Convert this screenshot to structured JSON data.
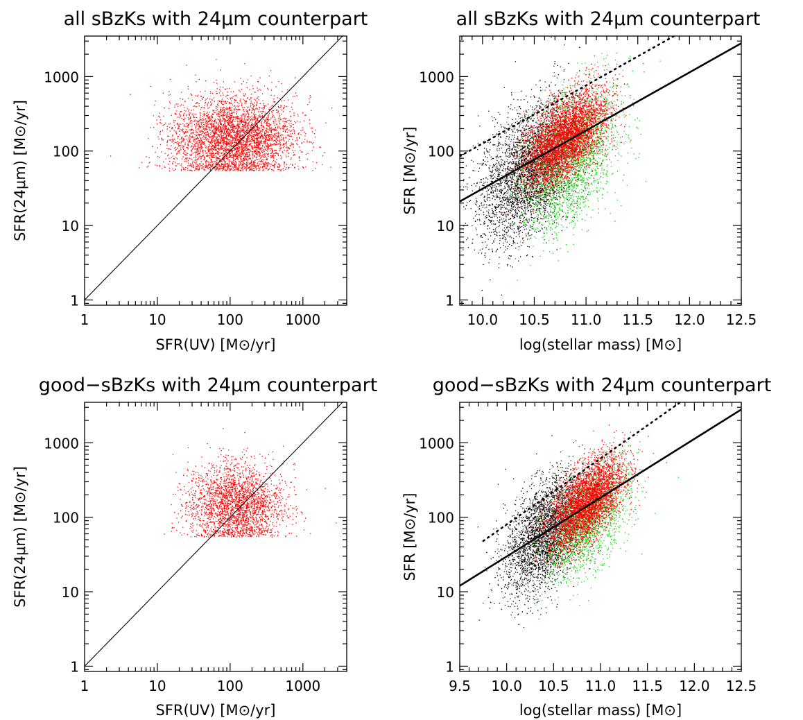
{
  "colors": {
    "red": "#ff0000",
    "green": "#00e000",
    "black": "#000000"
  },
  "chart_data": [
    {
      "type": "scatter",
      "title": "all sBzKs with 24μm counterpart",
      "xlabel": "SFR(UV) [M⊙/yr]",
      "ylabel": "SFR(24μm) [M⊙/yr]",
      "xscale": "log",
      "yscale": "log",
      "xlim": [
        1,
        4000
      ],
      "ylim": [
        0.85,
        3500
      ],
      "xticks": [
        "1",
        "10",
        "100",
        "1000"
      ],
      "yticks": [
        "1",
        "10",
        "100",
        "1000"
      ],
      "grid": false,
      "lines": [
        {
          "style": "solid",
          "x": [
            1,
            4000
          ],
          "y": [
            1,
            4000
          ]
        }
      ],
      "clouds": [
        {
          "name": "",
          "color": "red",
          "count": 4200,
          "center": [
            110,
            150
          ],
          "spread_log": [
            0.42,
            0.28
          ],
          "ymin": 55
        }
      ]
    },
    {
      "type": "scatter",
      "title": "all sBzKs with 24μm counterpart",
      "xlabel": "log(stellar mass) [M⊙]",
      "ylabel": "SFR [M⊙/yr]",
      "xscale": "linear",
      "yscale": "log",
      "xlim": [
        9.78,
        12.5
      ],
      "ylim": [
        0.85,
        3500
      ],
      "xticks": [
        "10.0",
        "10.5",
        "11.0",
        "11.5",
        "12.0",
        "12.5"
      ],
      "yticks": [
        "1",
        "10",
        "100",
        "1000"
      ],
      "grid": false,
      "lines": [
        {
          "style": "solid",
          "x": [
            9.78,
            12.5
          ],
          "y": [
            21,
            2800
          ]
        },
        {
          "style": "dotted",
          "x": [
            9.78,
            11.85
          ],
          "y": [
            85,
            3500
          ]
        }
      ],
      "clouds": [
        {
          "name": "",
          "color": "black",
          "count": 3500,
          "center": [
            10.45,
            55
          ],
          "spread": [
            0.4,
            0.42
          ]
        },
        {
          "name": "",
          "color": "green",
          "count": 2200,
          "center": [
            10.85,
            80
          ],
          "spread": [
            0.38,
            0.42
          ]
        },
        {
          "name": "",
          "color": "red",
          "count": 4500,
          "center": [
            10.8,
            150
          ],
          "spread": [
            0.33,
            0.26
          ]
        }
      ]
    },
    {
      "type": "scatter",
      "title": "good−sBzKs with 24μm counterpart",
      "xlabel": "SFR(UV) [M⊙/yr]",
      "ylabel": "SFR(24μm) [M⊙/yr]",
      "xscale": "log",
      "yscale": "log",
      "xlim": [
        1,
        4000
      ],
      "ylim": [
        0.85,
        3500
      ],
      "xticks": [
        "1",
        "10",
        "100",
        "1000"
      ],
      "yticks": [
        "1",
        "10",
        "100",
        "1000"
      ],
      "grid": false,
      "lines": [
        {
          "style": "solid",
          "x": [
            1,
            4000
          ],
          "y": [
            1,
            4000
          ]
        }
      ],
      "clouds": [
        {
          "name": "",
          "color": "red",
          "count": 3800,
          "center": [
            120,
            150
          ],
          "spread_log": [
            0.32,
            0.27
          ],
          "ymin": 55,
          "xmin": 10
        }
      ]
    },
    {
      "type": "scatter",
      "title": "good−sBzKs with 24μm counterpart",
      "xlabel": "log(stellar mass) [M⊙]",
      "ylabel": "SFR [M⊙/yr]",
      "xscale": "linear",
      "yscale": "log",
      "xlim": [
        9.5,
        12.5
      ],
      "ylim": [
        0.85,
        3500
      ],
      "xticks": [
        "9.5",
        "10.0",
        "10.5",
        "11.0",
        "11.5",
        "12.0",
        "12.5"
      ],
      "yticks": [
        "1",
        "10",
        "100",
        "1000"
      ],
      "grid": false,
      "lines": [
        {
          "style": "solid",
          "x": [
            9.5,
            12.5
          ],
          "y": [
            12,
            2800
          ]
        },
        {
          "style": "dotted",
          "x": [
            9.75,
            11.85
          ],
          "y": [
            48,
            3500
          ]
        }
      ],
      "clouds": [
        {
          "name": "",
          "color": "black",
          "count": 3000,
          "center": [
            10.4,
            60
          ],
          "spread": [
            0.35,
            0.35
          ]
        },
        {
          "name": "",
          "color": "green",
          "count": 1800,
          "center": [
            10.85,
            90
          ],
          "spread": [
            0.38,
            0.32
          ]
        },
        {
          "name": "",
          "color": "red",
          "count": 4200,
          "center": [
            10.85,
            160
          ],
          "spread": [
            0.33,
            0.25
          ]
        }
      ]
    }
  ]
}
